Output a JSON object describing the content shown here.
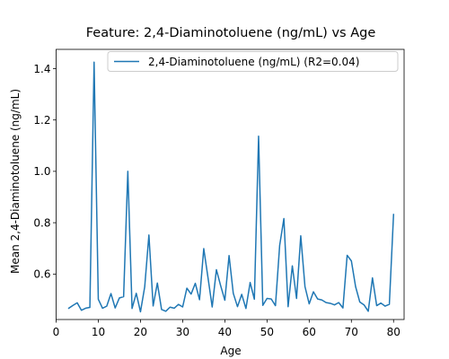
{
  "chart_data": {
    "type": "line",
    "title": "Feature: 2,4-Diaminotoluene (ng/mL) vs Age",
    "xlabel": "Age",
    "ylabel": "Mean 2,4-Diaminotoluene (ng/mL)",
    "xlim": [
      0,
      82.5
    ],
    "ylim": [
      0.423,
      1.475
    ],
    "xticks": [
      0,
      10,
      20,
      30,
      40,
      50,
      60,
      70,
      80
    ],
    "yticks": [
      0.6,
      0.8,
      1.0,
      1.2,
      1.4
    ],
    "ytick_labels": [
      "0.6",
      "0.8",
      "1.0",
      "1.2",
      "1.4"
    ],
    "grid": false,
    "legend_position": "top-right",
    "series": [
      {
        "name": "2,4-Diaminotoluene (ng/mL) (R2=0.04)",
        "color": "#1f77b4",
        "x": [
          3,
          4,
          5,
          6,
          7,
          8,
          9,
          10,
          11,
          12,
          13,
          14,
          15,
          16,
          17,
          18,
          19,
          20,
          21,
          22,
          23,
          24,
          25,
          26,
          27,
          28,
          29,
          30,
          31,
          32,
          33,
          34,
          35,
          36,
          37,
          38,
          39,
          40,
          41,
          42,
          43,
          44,
          45,
          46,
          47,
          48,
          49,
          50,
          51,
          52,
          53,
          54,
          55,
          56,
          57,
          58,
          59,
          60,
          61,
          62,
          63,
          64,
          65,
          66,
          67,
          68,
          69,
          70,
          71,
          72,
          73,
          74,
          75,
          76,
          77,
          78,
          79,
          80
        ],
        "values": [
          0.467,
          0.478,
          0.488,
          0.459,
          0.467,
          0.47,
          1.425,
          0.502,
          0.467,
          0.475,
          0.524,
          0.468,
          0.507,
          0.512,
          1.0,
          0.466,
          0.525,
          0.453,
          0.55,
          0.752,
          0.476,
          0.565,
          0.462,
          0.455,
          0.471,
          0.467,
          0.482,
          0.472,
          0.545,
          0.522,
          0.564,
          0.5,
          0.699,
          0.587,
          0.472,
          0.617,
          0.555,
          0.498,
          0.672,
          0.525,
          0.473,
          0.521,
          0.466,
          0.567,
          0.502,
          1.137,
          0.478,
          0.505,
          0.503,
          0.477,
          0.712,
          0.816,
          0.473,
          0.632,
          0.505,
          0.749,
          0.551,
          0.484,
          0.531,
          0.503,
          0.499,
          0.489,
          0.486,
          0.48,
          0.489,
          0.468,
          0.673,
          0.651,
          0.551,
          0.491,
          0.48,
          0.455,
          0.585,
          0.477,
          0.487,
          0.475,
          0.482,
          0.832
        ]
      }
    ]
  }
}
